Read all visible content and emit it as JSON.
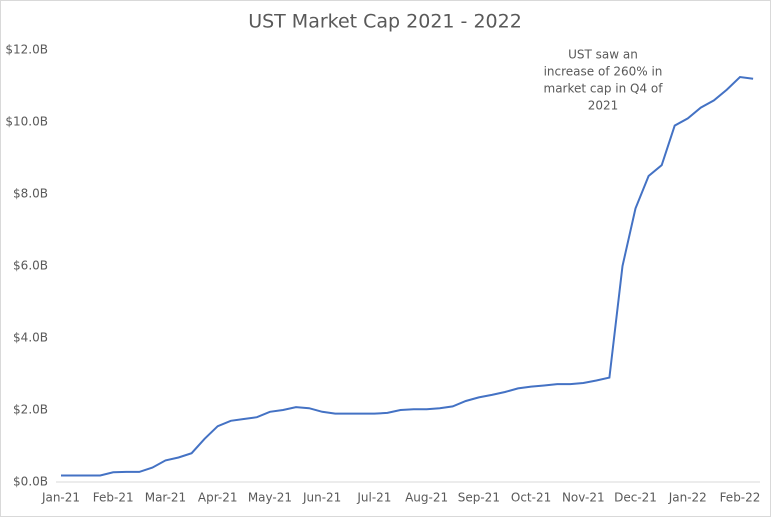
{
  "chart_data": {
    "type": "line",
    "title": "UST Market Cap 2021 - 2022",
    "categories": [
      "Jan-21",
      null,
      null,
      null,
      "Feb-21",
      null,
      null,
      null,
      "Mar-21",
      null,
      null,
      null,
      "Apr-21",
      null,
      null,
      null,
      "May-21",
      null,
      null,
      null,
      "Jun-21",
      null,
      null,
      null,
      "Jul-21",
      null,
      null,
      null,
      "Aug-21",
      null,
      null,
      null,
      "Sep-21",
      null,
      null,
      null,
      "Oct-21",
      null,
      null,
      null,
      "Nov-21",
      null,
      null,
      null,
      "Dec-21",
      null,
      null,
      null,
      "Jan-22",
      null,
      null,
      null,
      "Feb-22",
      null
    ],
    "series": [
      {
        "name": "UST Market Cap",
        "color": "#4472c4",
        "values": [
          0.18,
          0.18,
          0.18,
          0.18,
          0.27,
          0.28,
          0.28,
          0.4,
          0.6,
          0.68,
          0.8,
          1.2,
          1.55,
          1.7,
          1.75,
          1.8,
          1.95,
          2.0,
          2.08,
          2.05,
          1.95,
          1.9,
          1.9,
          1.9,
          1.9,
          1.92,
          2.0,
          2.02,
          2.02,
          2.05,
          2.1,
          2.25,
          2.35,
          2.42,
          2.5,
          2.6,
          2.65,
          2.68,
          2.72,
          2.72,
          2.75,
          2.82,
          2.9,
          6.0,
          7.6,
          8.5,
          8.8,
          9.9,
          10.1,
          10.4,
          10.6,
          10.9,
          11.25,
          11.2
        ]
      }
    ],
    "ylim": [
      0,
      12
    ],
    "yticks": [
      {
        "value": 0,
        "label": "$0.0B"
      },
      {
        "value": 2,
        "label": "$2.0B"
      },
      {
        "value": 4,
        "label": "$4.0B"
      },
      {
        "value": 6,
        "label": "$6.0B"
      },
      {
        "value": 8,
        "label": "$8.0B"
      },
      {
        "value": 10,
        "label": "$10.0B"
      },
      {
        "value": 12,
        "label": "$12.0B"
      }
    ],
    "annotation": [
      "UST saw an",
      "increase of 260% in",
      "market cap in Q4 of",
      "2021"
    ]
  }
}
